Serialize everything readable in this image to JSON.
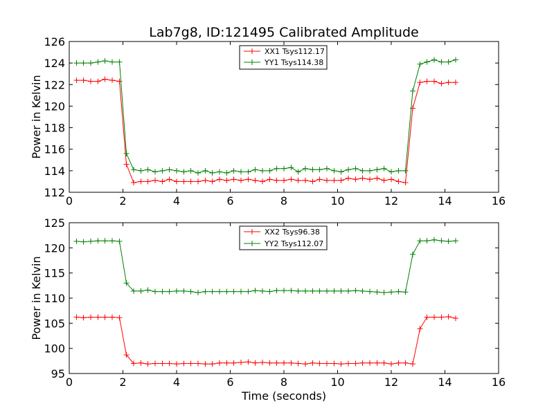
{
  "chart_data": [
    {
      "type": "line",
      "title": "Lab7g8, ID:121495 Calibrated Amplitude",
      "xlabel": "",
      "ylabel": "Power in Kelvin",
      "xlim": [
        0,
        16
      ],
      "ylim": [
        112,
        126
      ],
      "xticks": [
        0,
        2,
        4,
        6,
        8,
        10,
        12,
        14,
        16
      ],
      "yticks": [
        112,
        114,
        116,
        118,
        120,
        122,
        124,
        126
      ],
      "grid": false,
      "legend_position": "top-center",
      "x": [
        0.27,
        0.53,
        0.8,
        1.07,
        1.33,
        1.6,
        1.87,
        2.13,
        2.4,
        2.67,
        2.93,
        3.2,
        3.47,
        3.73,
        4.0,
        4.27,
        4.53,
        4.8,
        5.07,
        5.33,
        5.6,
        5.87,
        6.13,
        6.4,
        6.67,
        6.93,
        7.2,
        7.47,
        7.73,
        8.0,
        8.27,
        8.53,
        8.8,
        9.07,
        9.33,
        9.6,
        9.87,
        10.13,
        10.4,
        10.67,
        10.93,
        11.2,
        11.47,
        11.73,
        12.0,
        12.27,
        12.53,
        12.8,
        13.07,
        13.33,
        13.6,
        13.87,
        14.13,
        14.4
      ],
      "series": [
        {
          "name": "XX1 Tsys112.17",
          "color": "#ff0000",
          "values": [
            122.4,
            122.4,
            122.3,
            122.3,
            122.5,
            122.4,
            122.3,
            114.6,
            112.9,
            113.0,
            113.0,
            113.1,
            113.0,
            113.2,
            113.0,
            113.0,
            113.0,
            113.0,
            113.1,
            113.0,
            113.2,
            113.1,
            113.2,
            113.1,
            113.2,
            113.1,
            113.0,
            113.2,
            113.1,
            113.1,
            113.2,
            113.1,
            113.1,
            113.0,
            113.2,
            113.1,
            113.1,
            113.1,
            113.3,
            113.2,
            113.3,
            113.2,
            113.3,
            113.1,
            113.2,
            113.0,
            112.9,
            119.8,
            122.2,
            122.3,
            122.3,
            122.1,
            122.2,
            122.2
          ]
        },
        {
          "name": "YY1 Tsys114.38",
          "color": "#008000",
          "values": [
            124.0,
            124.0,
            124.0,
            124.1,
            124.2,
            124.1,
            124.1,
            115.6,
            114.1,
            114.0,
            114.1,
            113.9,
            114.0,
            114.1,
            114.0,
            113.9,
            114.0,
            113.8,
            114.0,
            113.8,
            113.9,
            113.8,
            114.0,
            113.9,
            113.9,
            114.1,
            114.0,
            114.0,
            114.2,
            114.2,
            114.3,
            113.9,
            114.2,
            114.1,
            114.1,
            114.2,
            114.0,
            113.9,
            114.1,
            114.2,
            114.0,
            114.0,
            114.1,
            114.2,
            113.9,
            114.0,
            114.0,
            121.4,
            123.9,
            124.1,
            124.3,
            124.1,
            124.1,
            124.3
          ]
        }
      ]
    },
    {
      "type": "line",
      "title": "",
      "xlabel": "Time (seconds)",
      "ylabel": "Power in Kelvin",
      "xlim": [
        0,
        16
      ],
      "ylim": [
        95,
        125
      ],
      "xticks": [
        0,
        2,
        4,
        6,
        8,
        10,
        12,
        14,
        16
      ],
      "yticks": [
        95,
        100,
        105,
        110,
        115,
        120,
        125
      ],
      "grid": false,
      "legend_position": "top-center",
      "x": [
        0.27,
        0.53,
        0.8,
        1.07,
        1.33,
        1.6,
        1.87,
        2.13,
        2.4,
        2.67,
        2.93,
        3.2,
        3.47,
        3.73,
        4.0,
        4.27,
        4.53,
        4.8,
        5.07,
        5.33,
        5.6,
        5.87,
        6.13,
        6.4,
        6.67,
        6.93,
        7.2,
        7.47,
        7.73,
        8.0,
        8.27,
        8.53,
        8.8,
        9.07,
        9.33,
        9.6,
        9.87,
        10.13,
        10.4,
        10.67,
        10.93,
        11.2,
        11.47,
        11.73,
        12.0,
        12.27,
        12.53,
        12.8,
        13.07,
        13.33,
        13.6,
        13.87,
        14.13,
        14.4
      ],
      "series": [
        {
          "name": "XX2 Tsys96.38",
          "color": "#ff0000",
          "values": [
            106.2,
            106.1,
            106.2,
            106.2,
            106.2,
            106.2,
            106.1,
            98.7,
            97.0,
            97.1,
            96.9,
            97.0,
            97.0,
            97.0,
            96.9,
            97.0,
            97.0,
            97.0,
            96.9,
            96.9,
            97.1,
            97.1,
            97.1,
            97.2,
            97.3,
            97.1,
            97.2,
            97.1,
            97.1,
            97.1,
            97.1,
            97.0,
            96.9,
            97.1,
            97.0,
            97.0,
            97.0,
            96.9,
            97.0,
            97.0,
            97.1,
            97.1,
            97.1,
            97.1,
            96.9,
            97.1,
            97.1,
            96.9,
            103.9,
            106.2,
            106.2,
            106.2,
            106.3,
            106.0
          ]
        },
        {
          "name": "YY2 Tsys112.07",
          "color": "#008000",
          "values": [
            121.3,
            121.2,
            121.3,
            121.4,
            121.4,
            121.4,
            121.3,
            113.0,
            111.4,
            111.4,
            111.6,
            111.3,
            111.3,
            111.3,
            111.4,
            111.4,
            111.3,
            111.1,
            111.3,
            111.3,
            111.3,
            111.3,
            111.3,
            111.3,
            111.3,
            111.5,
            111.4,
            111.3,
            111.5,
            111.5,
            111.5,
            111.4,
            111.4,
            111.4,
            111.4,
            111.4,
            111.4,
            111.4,
            111.4,
            111.5,
            111.4,
            111.3,
            111.2,
            111.1,
            111.2,
            111.3,
            111.2,
            118.7,
            121.4,
            121.4,
            121.6,
            121.4,
            121.3,
            121.4
          ]
        }
      ]
    }
  ]
}
